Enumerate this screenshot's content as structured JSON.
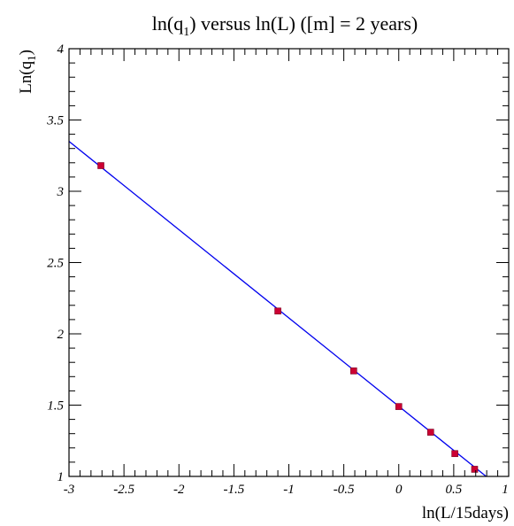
{
  "chart_data": {
    "type": "scatter",
    "title": "ln(q1) versus  ln(L)  ([m] = 2 years)",
    "title_parts": {
      "pre": "ln(q",
      "sub": "1",
      "post": ") versus  ln(L)  ([m] = 2 years)"
    },
    "xlabel": "ln(L/15days)",
    "ylabel": "Ln(q1)",
    "ylabel_parts": {
      "pre": "Ln(q",
      "sub": "1",
      "post": ")"
    },
    "xlim": [
      -3,
      1
    ],
    "ylim": [
      1,
      4
    ],
    "x_ticks": [
      -3,
      -2.5,
      -2,
      -1.5,
      -1,
      -0.5,
      0,
      0.5,
      1
    ],
    "x_tick_labels": [
      "-3",
      "-2.5",
      "-2",
      "-1.5",
      "-1",
      "-0.5",
      "0",
      "0.5",
      "1"
    ],
    "y_ticks": [
      1,
      1.5,
      2,
      2.5,
      3,
      3.5,
      4
    ],
    "y_tick_labels": [
      "1",
      "1.5",
      "2",
      "2.5",
      "3",
      "3.5",
      "4"
    ],
    "grid": false,
    "series": [
      {
        "type": "scatter",
        "color": "#cc0033",
        "x": [
          -2.71,
          -1.1,
          -0.41,
          0.0,
          0.29,
          0.51,
          0.69
        ],
        "y": [
          3.18,
          2.16,
          1.74,
          1.49,
          1.31,
          1.16,
          1.05
        ]
      }
    ],
    "fit_line": {
      "type": "line",
      "color": "#0000ee",
      "x": [
        -3,
        0.795
      ],
      "y": [
        3.35,
        1.0
      ]
    }
  }
}
